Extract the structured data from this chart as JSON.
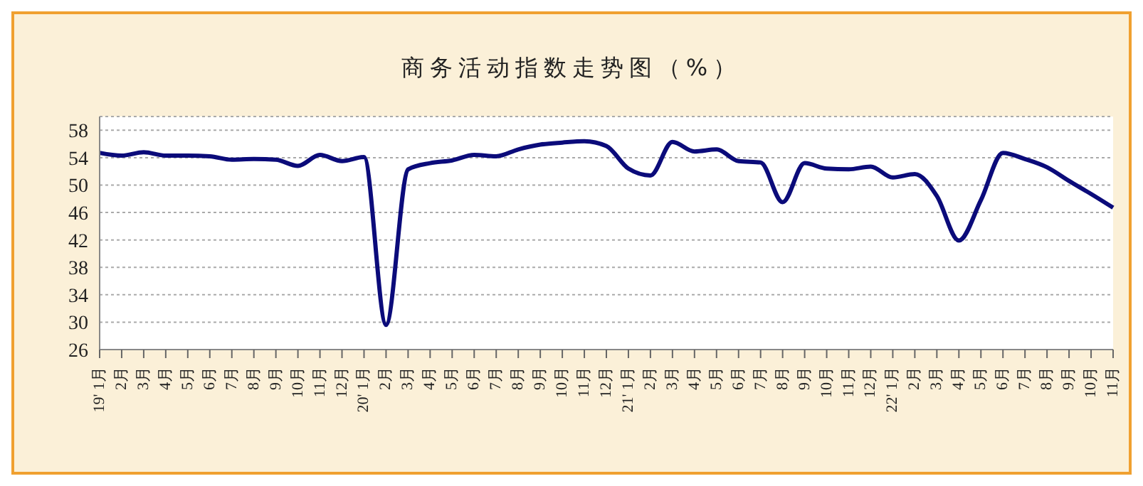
{
  "chart_data": {
    "type": "line",
    "title": "商务活动指数走势图（%）",
    "categories": [
      "19' 1月",
      "2月",
      "3月",
      "4月",
      "5月",
      "6月",
      "7月",
      "8月",
      "9月",
      "10月",
      "11月",
      "12月",
      "20' 1月",
      "2月",
      "3月",
      "4月",
      "5月",
      "6月",
      "7月",
      "8月",
      "9月",
      "10月",
      "11月",
      "12月",
      "21' 1月",
      "2月",
      "3月",
      "4月",
      "5月",
      "6月",
      "7月",
      "8月",
      "9月",
      "10月",
      "11月",
      "12月",
      "22' 1月",
      "2月",
      "3月",
      "4月",
      "5月",
      "6月",
      "7月",
      "8月",
      "9月",
      "10月",
      "11月"
    ],
    "series": [
      {
        "color": "#0b0b7a",
        "values": [
          54.7,
          54.3,
          54.8,
          54.3,
          54.3,
          54.2,
          53.7,
          53.8,
          53.7,
          52.8,
          54.4,
          53.5,
          54.1,
          29.6,
          52.3,
          53.2,
          53.6,
          54.4,
          54.2,
          55.2,
          55.9,
          56.2,
          56.4,
          55.7,
          52.4,
          51.4,
          56.3,
          54.9,
          55.2,
          53.5,
          53.3,
          47.5,
          53.2,
          52.4,
          52.3,
          52.7,
          51.1,
          51.6,
          48.4,
          41.9,
          47.8,
          54.7,
          53.8,
          52.6,
          50.6,
          48.7,
          46.7
        ]
      }
    ],
    "ylim": [
      26,
      60
    ],
    "yticks": [
      26,
      30,
      34,
      38,
      42,
      46,
      50,
      54,
      58
    ],
    "grid": "y",
    "marker": "none",
    "line_style": "solid"
  }
}
